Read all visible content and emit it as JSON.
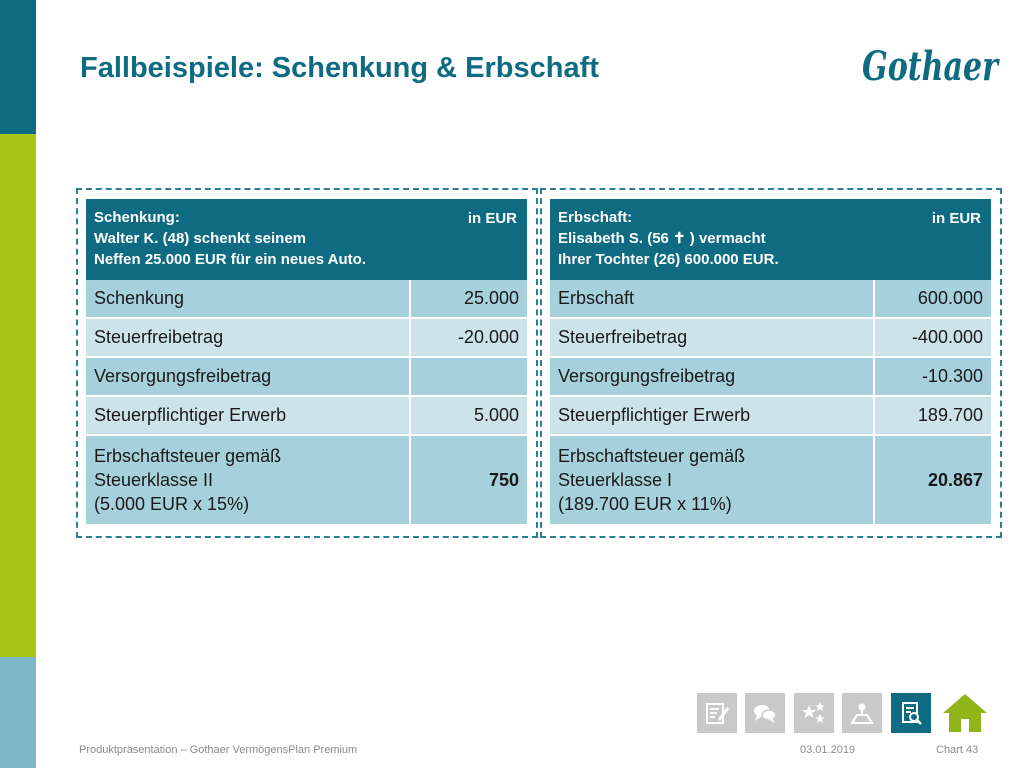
{
  "title": "Fallbeispiele: Schenkung & Erbschaft",
  "logo_text": "Gothaer",
  "colors": {
    "brand_teal": "#0e6b82",
    "accent_green": "#a9c616",
    "row_dark": "#a6d0dc",
    "row_light": "#cde3ea",
    "home_green": "#8fb51b"
  },
  "left_table": {
    "header": {
      "line1": "Schenkung:",
      "line2": "Walter K. (48) schenkt seinem",
      "line3": "Neffen 25.000 EUR für ein neues Auto.",
      "unit": "in EUR"
    },
    "rows": [
      {
        "label": "Schenkung",
        "value": "25.000"
      },
      {
        "label": "Steuerfreibetrag",
        "value": "-20.000"
      },
      {
        "label": "Versorgungsfreibetrag",
        "value": ""
      },
      {
        "label": "Steuerpflichtiger Erwerb",
        "value": "5.000"
      }
    ],
    "result": {
      "line1": "Erbschaftsteuer gemäß",
      "line2": "Steuerklasse II",
      "line3": "(5.000 EUR x 15%)",
      "value": "750"
    }
  },
  "right_table": {
    "header": {
      "line1": "Erbschaft:",
      "line2": "Elisabeth S. (56 ✝ ) vermacht",
      "line3": "Ihrer Tochter (26) 600.000 EUR.",
      "unit": "in EUR"
    },
    "rows": [
      {
        "label": "Erbschaft",
        "value": "600.000"
      },
      {
        "label": "Steuerfreibetrag",
        "value": "-400.000"
      },
      {
        "label": "Versorgungsfreibetrag",
        "value": "-10.300"
      },
      {
        "label": "Steuerpflichtiger Erwerb",
        "value": "189.700"
      }
    ],
    "result": {
      "line1": "Erbschaftsteuer gemäß",
      "line2": "Steuerklasse I",
      "line3": "(189.700 EUR x 11%)",
      "value": "20.867"
    }
  },
  "nav": {
    "icons": [
      "notepad-pencil-icon",
      "speech-bubbles-icon",
      "stars-icon",
      "map-person-icon",
      "document-search-icon",
      "home-icon"
    ],
    "active": "document-search-icon"
  },
  "footer": {
    "presentation": "Produktpräsentation – Gothaer VermögensPlan Premium",
    "date": "03.01.2019",
    "chart": "Chart 43"
  }
}
